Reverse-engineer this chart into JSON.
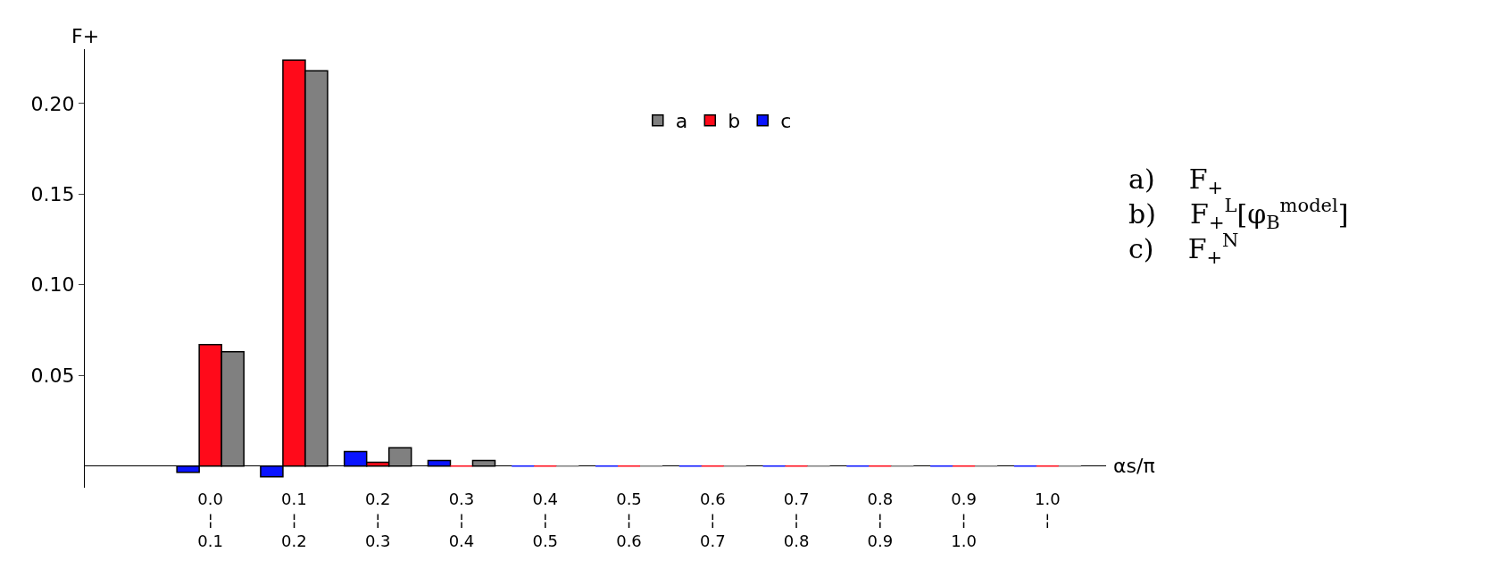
{
  "chart_data": {
    "type": "bar",
    "ylabel": "F+",
    "xlabel": "αs/π",
    "categories": [
      "0.0\n¦\n0.1",
      "0.1\n¦\n0.2",
      "0.2\n¦\n0.3",
      "0.3\n¦\n0.4",
      "0.4\n¦\n0.5",
      "0.5\n¦\n0.6",
      "0.6\n¦\n0.7",
      "0.7\n¦\n0.8",
      "0.8\n¦\n0.9",
      "0.9\n¦\n1.0",
      "1.0\n¦\n"
    ],
    "series": [
      {
        "name": "a",
        "color": "#808080",
        "values": [
          0.063,
          0.218,
          0.01,
          0.003,
          0,
          0,
          0,
          0,
          0,
          0,
          0
        ]
      },
      {
        "name": "b",
        "color": "#ff0a1a",
        "values": [
          0.067,
          0.224,
          0.002,
          0,
          0,
          0,
          0,
          0,
          0,
          0,
          0
        ]
      },
      {
        "name": "c",
        "color": "#0a14ff",
        "values": [
          -0.0035,
          -0.006,
          0.008,
          0.003,
          0,
          0,
          0,
          0,
          0,
          0,
          0
        ]
      }
    ],
    "ylim": [
      -0.012,
      0.23
    ],
    "yticks": [
      {
        "value": 0.05,
        "label": "0.05"
      },
      {
        "value": 0.1,
        "label": "0.10"
      },
      {
        "value": 0.15,
        "label": "0.15"
      },
      {
        "value": 0.2,
        "label": "0.20"
      }
    ],
    "legend": "top",
    "annotations": [
      "a)    F$_{+}$",
      "b)    F$_{+}$$^{L}$[φ$_{B}$$^{model}$]",
      "c)    F$_{+}$$^{N}$"
    ]
  }
}
